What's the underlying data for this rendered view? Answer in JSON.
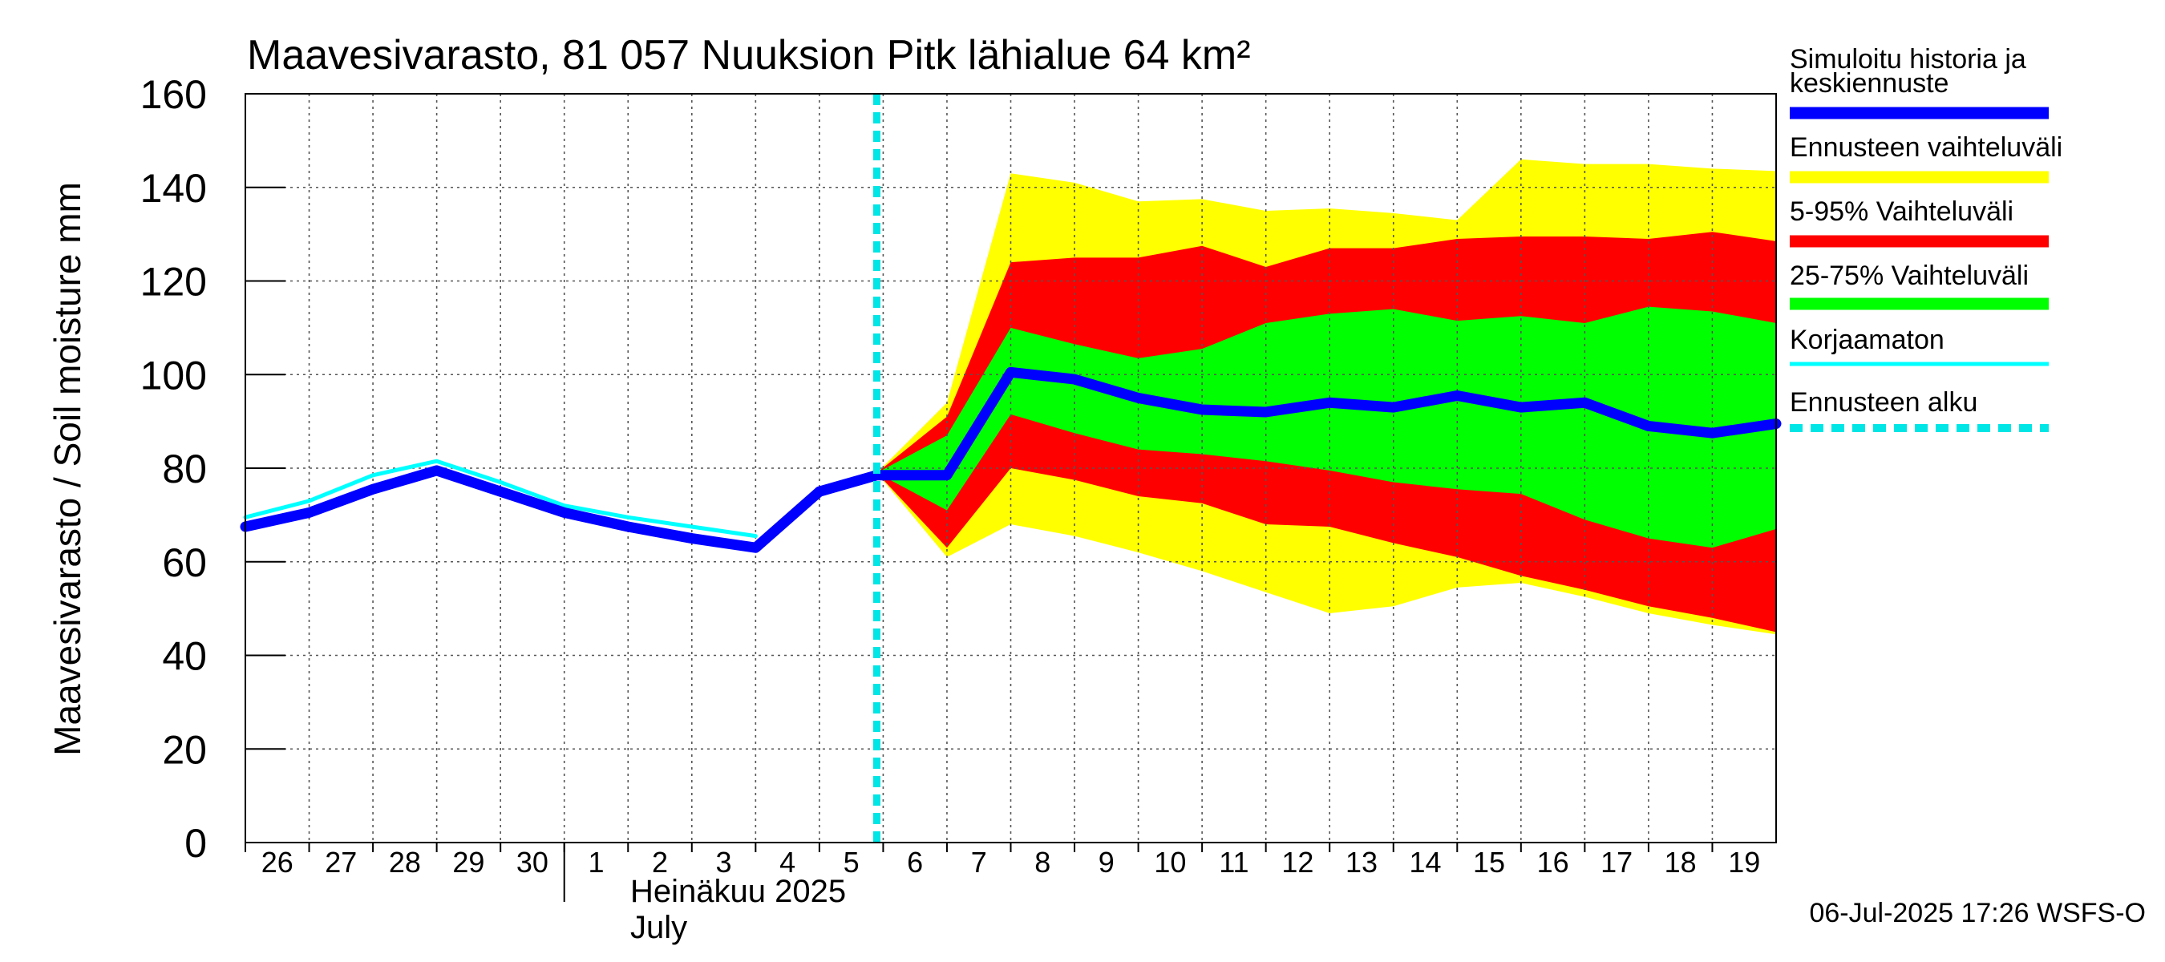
{
  "chart_data": {
    "type": "area",
    "title": "Maavesivarasto, 81 057 Nuuksion Pitk lähialue 64 km²",
    "ylabel": "Maavesivarasto / Soil moisture   mm",
    "ylim": [
      0,
      160
    ],
    "yticks": [
      0,
      20,
      40,
      60,
      80,
      100,
      120,
      140,
      160
    ],
    "grid": true,
    "x_range": [
      26,
      50
    ],
    "x_ticks": [
      {
        "x": 26,
        "label": "26"
      },
      {
        "x": 27,
        "label": "27"
      },
      {
        "x": 28,
        "label": "28"
      },
      {
        "x": 29,
        "label": "29"
      },
      {
        "x": 30,
        "label": "30"
      },
      {
        "x": 31,
        "label": "1"
      },
      {
        "x": 32,
        "label": "2"
      },
      {
        "x": 33,
        "label": "3"
      },
      {
        "x": 34,
        "label": "4"
      },
      {
        "x": 35,
        "label": "5"
      },
      {
        "x": 36,
        "label": "6"
      },
      {
        "x": 37,
        "label": "7"
      },
      {
        "x": 38,
        "label": "8"
      },
      {
        "x": 39,
        "label": "9"
      },
      {
        "x": 40,
        "label": "10"
      },
      {
        "x": 41,
        "label": "11"
      },
      {
        "x": 42,
        "label": "12"
      },
      {
        "x": 43,
        "label": "13"
      },
      {
        "x": 44,
        "label": "14"
      },
      {
        "x": 45,
        "label": "15"
      },
      {
        "x": 46,
        "label": "16"
      },
      {
        "x": 47,
        "label": "17"
      },
      {
        "x": 48,
        "label": "18"
      },
      {
        "x": 49,
        "label": "19"
      }
    ],
    "month_divider_x": 31,
    "month_label_fi": "Heinäkuu  2025",
    "month_label_en": "July",
    "forecast_start_x": 35.9,
    "series": [
      {
        "name": "Ennusteen vaihteluväli",
        "kind": "band",
        "color": "#ffff00",
        "x": [
          35.9,
          37,
          38,
          39,
          40,
          41,
          42,
          43,
          44,
          45,
          46,
          47,
          48,
          49,
          50
        ],
        "upper": [
          79,
          94,
          143,
          141,
          137,
          137.5,
          135,
          135.5,
          134.5,
          133,
          146,
          145,
          145,
          144,
          143.5
        ],
        "lower": [
          79,
          61,
          68,
          65.5,
          62,
          58,
          53.5,
          49,
          50.5,
          54.5,
          55.5,
          52.5,
          49,
          46.5,
          44.5
        ]
      },
      {
        "name": "5-95% Vaihteluväli",
        "kind": "band",
        "color": "#ff0000",
        "x": [
          35.9,
          37,
          38,
          39,
          40,
          41,
          42,
          43,
          44,
          45,
          46,
          47,
          48,
          49,
          50
        ],
        "upper": [
          79,
          91,
          124,
          125,
          125,
          127.5,
          123,
          127,
          127,
          129,
          129.5,
          129.5,
          129,
          130.5,
          128.5
        ],
        "lower": [
          79,
          63,
          80,
          77.5,
          74,
          72.5,
          68,
          67.5,
          64,
          61,
          57,
          54,
          50.5,
          48,
          45
        ]
      },
      {
        "name": "25-75% Vaihteluväli",
        "kind": "band",
        "color": "#00ff00",
        "x": [
          35.9,
          37,
          38,
          39,
          40,
          41,
          42,
          43,
          44,
          45,
          46,
          47,
          48,
          49,
          50
        ],
        "upper": [
          79,
          87,
          110,
          106.5,
          103.5,
          105.5,
          111,
          113,
          114,
          111.5,
          112.5,
          111,
          114.5,
          113.5,
          111
        ],
        "lower": [
          79,
          71,
          91.5,
          87.5,
          84,
          83,
          81.5,
          79.5,
          77,
          75.5,
          74.5,
          69,
          65,
          63,
          67
        ]
      },
      {
        "name": "Korjaamaton",
        "kind": "line",
        "color": "#00ffff",
        "width": 5,
        "x": [
          26,
          27,
          28,
          29,
          30,
          31,
          32,
          33,
          34
        ],
        "y": [
          69.5,
          73,
          78.5,
          81.5,
          77,
          72,
          69.5,
          67.5,
          65.5
        ]
      },
      {
        "name": "Simuloitu historia ja keskiennuste",
        "kind": "line",
        "color": "#0000ff",
        "width": 13,
        "x": [
          26,
          27,
          28,
          29,
          30,
          31,
          32,
          33,
          34,
          35,
          35.9,
          37,
          38,
          39,
          40,
          41,
          42,
          43,
          44,
          45,
          46,
          47,
          48,
          49,
          50
        ],
        "y": [
          67.5,
          70.5,
          75.5,
          79.5,
          75,
          70.5,
          67.5,
          65,
          63,
          75,
          78.5,
          78.5,
          100.5,
          99,
          95,
          92.5,
          92,
          94,
          93,
          95.5,
          93,
          94,
          89,
          87.5,
          89.5
        ]
      }
    ],
    "legend": {
      "placement": "right",
      "items": [
        {
          "label": "Simuloitu historia ja keskiennuste",
          "line1": "Simuloitu historia ja",
          "line2": "keskiennuste",
          "color": "#0000ff",
          "style": "thick"
        },
        {
          "label": "Ennusteen vaihteluväli",
          "color": "#ffff00",
          "style": "thick"
        },
        {
          "label": "5-95% Vaihteluväli",
          "color": "#ff0000",
          "style": "thick"
        },
        {
          "label": "25-75% Vaihteluväli",
          "color": "#00ff00",
          "style": "thick"
        },
        {
          "label": "Korjaamaton",
          "color": "#00ffff",
          "style": "thin"
        },
        {
          "label": "Ennusteen alku",
          "color": "#00e5e5",
          "style": "dashed"
        }
      ]
    },
    "footer": "06-Jul-2025 17:26 WSFS-O"
  }
}
